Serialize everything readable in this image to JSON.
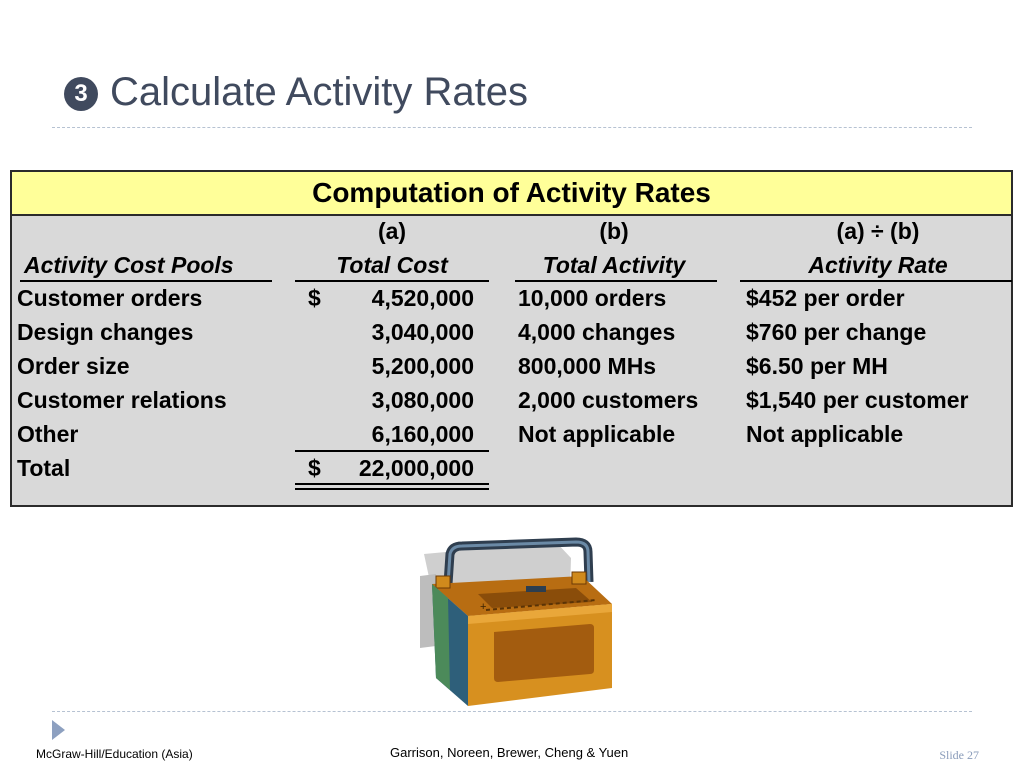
{
  "slide": {
    "bullet": "3",
    "title": "Calculate Activity Rates"
  },
  "table": {
    "title": "Computation of Activity Rates",
    "columns": [
      {
        "letter": "",
        "label": "Activity Cost Pools"
      },
      {
        "letter": "(a)",
        "label": "Total Cost"
      },
      {
        "letter": "(b)",
        "label": "Total Activity"
      },
      {
        "letter": "(a) ÷ (b)",
        "label": "Activity Rate"
      }
    ],
    "rows": [
      {
        "pool": "Customer orders",
        "currency": "$",
        "cost": "4,520,000",
        "activity": "10,000 orders",
        "rate": "$452 per order"
      },
      {
        "pool": "Design changes",
        "currency": "",
        "cost": "3,040,000",
        "activity": "4,000 changes",
        "rate": "$760 per change"
      },
      {
        "pool": "Order size",
        "currency": "",
        "cost": "5,200,000",
        "activity": "800,000 MHs",
        "rate": "$6.50 per MH"
      },
      {
        "pool": "Customer relations",
        "currency": "",
        "cost": "3,080,000",
        "activity": "2,000 customers",
        "rate": "$1,540 per customer"
      },
      {
        "pool": "Other",
        "currency": "",
        "cost": "6,160,000",
        "activity": "Not applicable",
        "rate": "Not applicable"
      }
    ],
    "total": {
      "label": "Total",
      "currency": "$",
      "cost": "22,000,000"
    }
  },
  "illustration": {
    "icon": "car-battery-icon"
  },
  "footer": {
    "publisher": "McGraw-Hill/Education (Asia)",
    "authors": "Garrison, Noreen, Brewer, Cheng & Yuen",
    "slide_number": "Slide 27"
  },
  "colors": {
    "title_text": "#404a5e",
    "table_header_bg": "#ffff99",
    "table_body_bg": "#d9d9d9",
    "rule": "#b6c2d2",
    "slide_number_text": "#8a9cba"
  }
}
